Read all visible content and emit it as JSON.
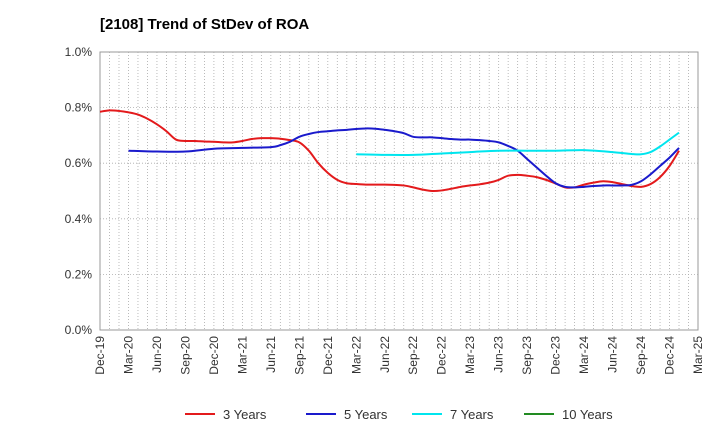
{
  "chart_data": {
    "type": "line",
    "title": "[2108]  Trend of StDev of ROA",
    "xlabel": "",
    "ylabel": "",
    "ylim": [
      0.0,
      1.0
    ],
    "y_ticks": [
      "0.0%",
      "0.2%",
      "0.4%",
      "0.6%",
      "0.8%",
      "1.0%"
    ],
    "x_ticks": [
      "Dec-19",
      "Mar-20",
      "Jun-20",
      "Sep-20",
      "Dec-20",
      "Mar-21",
      "Jun-21",
      "Sep-21",
      "Dec-21",
      "Mar-22",
      "Jun-22",
      "Sep-22",
      "Dec-22",
      "Mar-23",
      "Jun-23",
      "Sep-23",
      "Dec-23",
      "Mar-24",
      "Jun-24",
      "Sep-24",
      "Dec-24",
      "Mar-25"
    ],
    "grid": true,
    "legend_position": "bottom",
    "series": [
      {
        "name": "3 Years",
        "color": "#e31a1c",
        "points": [
          [
            "Dec-19",
            0.785
          ],
          [
            "Jan-20",
            0.79
          ],
          [
            "Feb-20",
            0.788
          ],
          [
            "Mar-20",
            0.783
          ],
          [
            "Apr-20",
            0.775
          ],
          [
            "May-20",
            0.76
          ],
          [
            "Jun-20",
            0.74
          ],
          [
            "Jul-20",
            0.715
          ],
          [
            "Aug-20",
            0.685
          ],
          [
            "Sep-20",
            0.68
          ],
          [
            "Oct-20",
            0.68
          ],
          [
            "Nov-20",
            0.678
          ],
          [
            "Dec-20",
            0.677
          ],
          [
            "Jan-21",
            0.675
          ],
          [
            "Feb-21",
            0.675
          ],
          [
            "Mar-21",
            0.68
          ],
          [
            "Apr-21",
            0.687
          ],
          [
            "May-21",
            0.69
          ],
          [
            "Jun-21",
            0.69
          ],
          [
            "Jul-21",
            0.688
          ],
          [
            "Aug-21",
            0.683
          ],
          [
            "Sep-21",
            0.675
          ],
          [
            "Oct-21",
            0.645
          ],
          [
            "Nov-21",
            0.6
          ],
          [
            "Dec-21",
            0.565
          ],
          [
            "Jan-22",
            0.54
          ],
          [
            "Feb-22",
            0.528
          ],
          [
            "Mar-22",
            0.525
          ],
          [
            "Apr-22",
            0.523
          ],
          [
            "May-22",
            0.523
          ],
          [
            "Jun-22",
            0.523
          ],
          [
            "Jul-22",
            0.522
          ],
          [
            "Aug-22",
            0.52
          ],
          [
            "Sep-22",
            0.513
          ],
          [
            "Oct-22",
            0.505
          ],
          [
            "Nov-22",
            0.5
          ],
          [
            "Dec-22",
            0.502
          ],
          [
            "Jan-23",
            0.508
          ],
          [
            "Feb-23",
            0.515
          ],
          [
            "Mar-23",
            0.52
          ],
          [
            "Apr-23",
            0.524
          ],
          [
            "May-23",
            0.53
          ],
          [
            "Jun-23",
            0.54
          ],
          [
            "Jul-23",
            0.555
          ],
          [
            "Aug-23",
            0.558
          ],
          [
            "Sep-23",
            0.555
          ],
          [
            "Oct-23",
            0.55
          ],
          [
            "Nov-23",
            0.54
          ],
          [
            "Dec-23",
            0.527
          ],
          [
            "Jan-24",
            0.513
          ],
          [
            "Feb-24",
            0.513
          ],
          [
            "Mar-24",
            0.523
          ],
          [
            "Apr-24",
            0.53
          ],
          [
            "May-24",
            0.535
          ],
          [
            "Jun-24",
            0.532
          ],
          [
            "Jul-24",
            0.525
          ],
          [
            "Aug-24",
            0.518
          ],
          [
            "Sep-24",
            0.515
          ],
          [
            "Oct-24",
            0.525
          ],
          [
            "Nov-24",
            0.55
          ],
          [
            "Dec-24",
            0.59
          ],
          [
            "Jan-25",
            0.645
          ]
        ]
      },
      {
        "name": "5 Years",
        "color": "#1a1acc",
        "points": [
          [
            "Mar-20",
            0.645
          ],
          [
            "Jun-20",
            0.642
          ],
          [
            "Sep-20",
            0.642
          ],
          [
            "Dec-20",
            0.652
          ],
          [
            "Mar-21",
            0.655
          ],
          [
            "Jun-21",
            0.658
          ],
          [
            "Jul-21",
            0.665
          ],
          [
            "Aug-21",
            0.677
          ],
          [
            "Sep-21",
            0.695
          ],
          [
            "Oct-21",
            0.705
          ],
          [
            "Nov-21",
            0.712
          ],
          [
            "Dec-21",
            0.715
          ],
          [
            "Jan-22",
            0.718
          ],
          [
            "Feb-22",
            0.72
          ],
          [
            "Mar-22",
            0.723
          ],
          [
            "Apr-22",
            0.725
          ],
          [
            "May-22",
            0.724
          ],
          [
            "Jun-22",
            0.72
          ],
          [
            "Jul-22",
            0.715
          ],
          [
            "Aug-22",
            0.708
          ],
          [
            "Sep-22",
            0.695
          ],
          [
            "Oct-22",
            0.693
          ],
          [
            "Nov-22",
            0.693
          ],
          [
            "Dec-22",
            0.69
          ],
          [
            "Jan-23",
            0.687
          ],
          [
            "Feb-23",
            0.685
          ],
          [
            "Mar-23",
            0.685
          ],
          [
            "Apr-23",
            0.683
          ],
          [
            "May-23",
            0.68
          ],
          [
            "Jun-23",
            0.675
          ],
          [
            "Jul-23",
            0.662
          ],
          [
            "Aug-23",
            0.645
          ],
          [
            "Sep-23",
            0.615
          ],
          [
            "Oct-23",
            0.585
          ],
          [
            "Nov-23",
            0.555
          ],
          [
            "Dec-23",
            0.528
          ],
          [
            "Jan-24",
            0.515
          ],
          [
            "Feb-24",
            0.513
          ],
          [
            "Mar-24",
            0.515
          ],
          [
            "Apr-24",
            0.518
          ],
          [
            "May-24",
            0.52
          ],
          [
            "Jun-24",
            0.52
          ],
          [
            "Jul-24",
            0.52
          ],
          [
            "Aug-24",
            0.522
          ],
          [
            "Sep-24",
            0.535
          ],
          [
            "Oct-24",
            0.56
          ],
          [
            "Nov-24",
            0.59
          ],
          [
            "Dec-24",
            0.62
          ],
          [
            "Jan-25",
            0.655
          ]
        ]
      },
      {
        "name": "7 Years",
        "color": "#00e5ee",
        "points": [
          [
            "Mar-22",
            0.632
          ],
          [
            "Jun-22",
            0.63
          ],
          [
            "Sep-22",
            0.63
          ],
          [
            "Dec-22",
            0.635
          ],
          [
            "Mar-23",
            0.64
          ],
          [
            "Jun-23",
            0.645
          ],
          [
            "Sep-23",
            0.645
          ],
          [
            "Dec-23",
            0.645
          ],
          [
            "Mar-24",
            0.647
          ],
          [
            "Jun-24",
            0.64
          ],
          [
            "Aug-24",
            0.633
          ],
          [
            "Sep-24",
            0.632
          ],
          [
            "Oct-24",
            0.64
          ],
          [
            "Nov-24",
            0.66
          ],
          [
            "Dec-24",
            0.685
          ],
          [
            "Jan-25",
            0.71
          ]
        ]
      },
      {
        "name": "10 Years",
        "color": "#228b22",
        "points": []
      }
    ]
  }
}
